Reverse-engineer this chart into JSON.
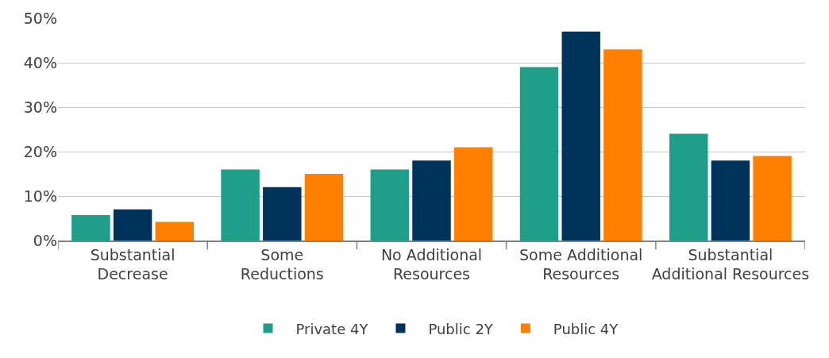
{
  "chart_data": {
    "type": "bar",
    "categories": [
      "Substantial\nDecrease",
      "Some\nReductions",
      "No Additional\nResources",
      "Some Additional\nResources",
      "Substantial\nAdditional Resources"
    ],
    "series": [
      {
        "name": "Private 4Y",
        "color": "#1f9e89",
        "values": [
          5.7,
          16,
          16,
          39,
          24
        ]
      },
      {
        "name": "Public 2Y",
        "color": "#00335a",
        "values": [
          7,
          12,
          18,
          47,
          18
        ]
      },
      {
        "name": "Public 4Y",
        "color": "#ff7f00",
        "values": [
          4.2,
          15,
          21,
          43,
          19
        ]
      }
    ],
    "ylim": [
      0,
      50
    ],
    "yticks": [
      {
        "value": 0,
        "label": "0%"
      },
      {
        "value": 10,
        "label": "10%"
      },
      {
        "value": 20,
        "label": "20%"
      },
      {
        "value": 30,
        "label": "30%"
      },
      {
        "value": 40,
        "label": "40%"
      },
      {
        "value": 50,
        "label": "50%"
      }
    ],
    "grid": "y",
    "legend": "bottom"
  }
}
